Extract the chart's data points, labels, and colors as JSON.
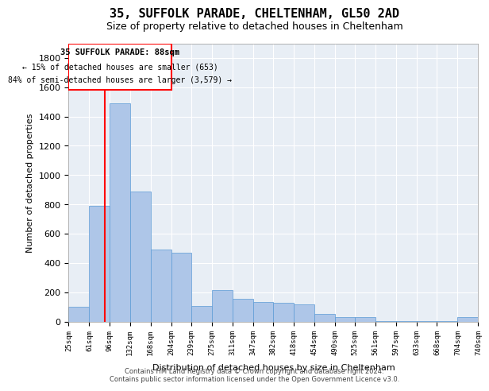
{
  "title1": "35, SUFFOLK PARADE, CHELTENHAM, GL50 2AD",
  "title2": "Size of property relative to detached houses in Cheltenham",
  "xlabel": "Distribution of detached houses by size in Cheltenham",
  "ylabel": "Number of detached properties",
  "footer1": "Contains HM Land Registry data © Crown copyright and database right 2024.",
  "footer2": "Contains public sector information licensed under the Open Government Licence v3.0.",
  "annotation_title": "35 SUFFOLK PARADE: 88sqm",
  "annotation_line1": "← 15% of detached houses are smaller (653)",
  "annotation_line2": "84% of semi-detached houses are larger (3,579) →",
  "bar_color": "#aec6e8",
  "bar_edge_color": "#5b9bd5",
  "background_color": "#e8eef5",
  "redline_x": 88,
  "bin_edges": [
    25,
    61,
    96,
    132,
    168,
    204,
    239,
    275,
    311,
    347,
    382,
    418,
    454,
    490,
    525,
    561,
    597,
    633,
    668,
    704,
    740
  ],
  "bin_labels": [
    "25sqm",
    "61sqm",
    "96sqm",
    "132sqm",
    "168sqm",
    "204sqm",
    "239sqm",
    "275sqm",
    "311sqm",
    "347sqm",
    "382sqm",
    "418sqm",
    "454sqm",
    "490sqm",
    "525sqm",
    "561sqm",
    "597sqm",
    "633sqm",
    "668sqm",
    "704sqm",
    "740sqm"
  ],
  "bar_heights": [
    100,
    790,
    1490,
    890,
    490,
    470,
    105,
    215,
    155,
    135,
    130,
    115,
    50,
    30,
    30,
    5,
    5,
    5,
    5,
    30,
    0
  ],
  "ylim": [
    0,
    1900
  ],
  "yticks": [
    0,
    200,
    400,
    600,
    800,
    1000,
    1200,
    1400,
    1600,
    1800
  ]
}
